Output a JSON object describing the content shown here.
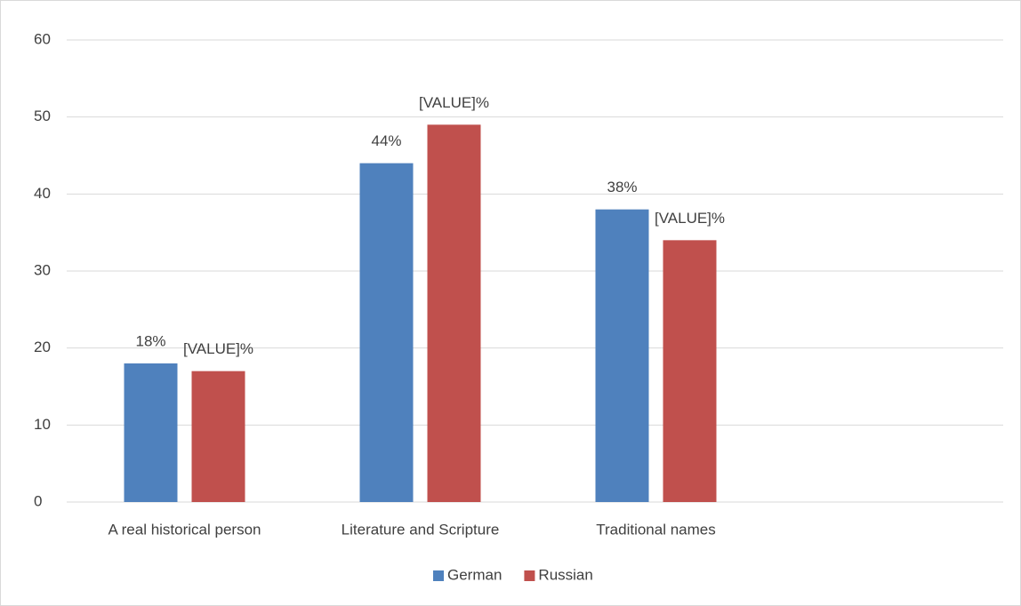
{
  "chart_data": {
    "type": "bar",
    "categories": [
      "A real historical person",
      "Literature and Scripture",
      "Traditional names",
      null
    ],
    "series": [
      {
        "name": "German",
        "color": "#4f81bd",
        "values": [
          18,
          44,
          38,
          null
        ],
        "value_labels": [
          "18%",
          "44%",
          "38%",
          null
        ]
      },
      {
        "name": "Russian",
        "color": "#c0504d",
        "values": [
          17,
          49,
          34,
          null
        ],
        "value_labels": [
          "[VALUE]%",
          "[VALUE]%",
          "[VALUE]%",
          null
        ]
      }
    ],
    "ylim": [
      0,
      60
    ],
    "yticks": [
      0,
      10,
      20,
      30,
      40,
      50,
      60
    ],
    "grid": true,
    "legend": "bottom"
  }
}
